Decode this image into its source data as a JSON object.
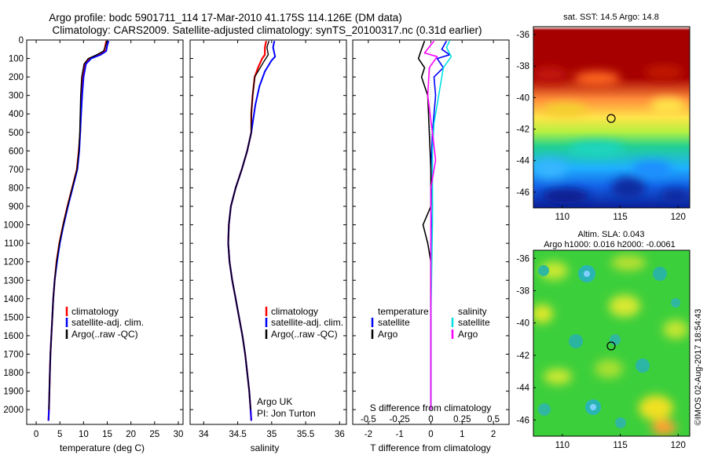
{
  "header": {
    "line1": "Argo profile: bodc 5901711_114 17-Mar-2010 41.175S 114.126E (DM data)",
    "line2": "Climatology: CARS2009. Satellite-adjusted climatology: synTS_20100317.nc (0.31d earlier)"
  },
  "colors": {
    "climatology": "#ff0000",
    "satellite": "#0000ff",
    "argo": "#000000",
    "sat_salinity": "#00e0e0",
    "argo_salinity": "#ff00ff"
  },
  "chart_data": [
    {
      "id": "temperature",
      "type": "line",
      "xlabel": "temperature (deg C)",
      "ylabel": "",
      "xlim": [
        -2,
        31
      ],
      "ylim": [
        2080,
        0
      ],
      "xticks": [
        0,
        5,
        10,
        15,
        20,
        25,
        30
      ],
      "yticks": [
        0,
        100,
        200,
        300,
        400,
        500,
        600,
        700,
        800,
        900,
        1000,
        1100,
        1200,
        1300,
        1400,
        1500,
        1600,
        1700,
        1800,
        1900,
        2000
      ],
      "legend": [
        "climatology",
        "satellite-adj. clim.",
        "Argo(..raw -QC)"
      ],
      "series": [
        {
          "name": "climatology",
          "points": [
            [
              14.8,
              5
            ],
            [
              14.6,
              30
            ],
            [
              14.4,
              60
            ],
            [
              13.2,
              80
            ],
            [
              11.3,
              100
            ],
            [
              10.3,
              130
            ],
            [
              9.9,
              200
            ],
            [
              9.6,
              300
            ],
            [
              9.4,
              400
            ],
            [
              9.3,
              500
            ],
            [
              9.0,
              600
            ],
            [
              8.6,
              700
            ],
            [
              7.6,
              800
            ],
            [
              6.6,
              900
            ],
            [
              5.7,
              1000
            ],
            [
              4.9,
              1100
            ],
            [
              4.3,
              1200
            ],
            [
              3.9,
              1300
            ],
            [
              3.6,
              1400
            ],
            [
              3.4,
              1500
            ],
            [
              3.2,
              1600
            ],
            [
              3.0,
              1700
            ],
            [
              2.9,
              1800
            ],
            [
              2.8,
              1900
            ],
            [
              2.7,
              2000
            ],
            [
              2.6,
              2060
            ]
          ]
        },
        {
          "name": "satellite-adj. clim.",
          "points": [
            [
              15.3,
              5
            ],
            [
              15.0,
              30
            ],
            [
              14.8,
              60
            ],
            [
              13.6,
              80
            ],
            [
              11.6,
              100
            ],
            [
              10.5,
              130
            ],
            [
              10.0,
              200
            ],
            [
              9.7,
              300
            ],
            [
              9.5,
              400
            ],
            [
              9.3,
              500
            ],
            [
              9.1,
              600
            ],
            [
              8.7,
              700
            ],
            [
              7.7,
              800
            ],
            [
              6.7,
              900
            ],
            [
              5.8,
              1000
            ],
            [
              5.0,
              1100
            ],
            [
              4.4,
              1200
            ],
            [
              3.9,
              1300
            ],
            [
              3.6,
              1400
            ],
            [
              3.4,
              1500
            ],
            [
              3.2,
              1600
            ],
            [
              3.0,
              1700
            ],
            [
              2.9,
              1800
            ],
            [
              2.8,
              1900
            ],
            [
              2.7,
              2000
            ],
            [
              2.6,
              2060
            ]
          ]
        },
        {
          "name": "Argo(..raw -QC)",
          "points": [
            [
              14.9,
              5
            ],
            [
              14.7,
              30
            ],
            [
              14.2,
              60
            ],
            [
              12.8,
              80
            ],
            [
              11.0,
              100
            ],
            [
              10.1,
              130
            ],
            [
              9.6,
              200
            ],
            [
              9.4,
              300
            ],
            [
              9.3,
              400
            ],
            [
              9.2,
              500
            ],
            [
              9.0,
              600
            ],
            [
              8.6,
              700
            ],
            [
              7.6,
              800
            ],
            [
              6.6,
              900
            ],
            [
              5.7,
              1000
            ],
            [
              4.9,
              1100
            ],
            [
              4.3,
              1200
            ],
            [
              3.9,
              1300
            ],
            [
              3.6,
              1400
            ],
            [
              3.4,
              1500
            ],
            [
              3.2,
              1600
            ],
            [
              3.0,
              1700
            ],
            [
              2.9,
              1800
            ],
            [
              2.8,
              1900
            ],
            [
              2.7,
              2000
            ]
          ]
        }
      ]
    },
    {
      "id": "salinity",
      "type": "line",
      "xlabel": "salinity",
      "xlim": [
        33.8,
        36.1
      ],
      "ylim": [
        2080,
        0
      ],
      "xticks": [
        34,
        34.5,
        35,
        35.5,
        36
      ],
      "legend": [
        "climatology",
        "satellite-adj. clim.",
        "Argo(..raw -QC)"
      ],
      "annotation": [
        "Argo UK",
        "PI: Jon Turton"
      ],
      "series": [
        {
          "name": "climatology",
          "points": [
            [
              34.92,
              5
            ],
            [
              34.9,
              40
            ],
            [
              34.9,
              80
            ],
            [
              34.86,
              100
            ],
            [
              34.8,
              150
            ],
            [
              34.75,
              200
            ],
            [
              34.72,
              300
            ],
            [
              34.7,
              400
            ],
            [
              34.7,
              500
            ],
            [
              34.64,
              600
            ],
            [
              34.56,
              700
            ],
            [
              34.47,
              800
            ],
            [
              34.4,
              900
            ],
            [
              34.37,
              1000
            ],
            [
              34.36,
              1100
            ],
            [
              34.38,
              1200
            ],
            [
              34.42,
              1300
            ],
            [
              34.47,
              1400
            ],
            [
              34.52,
              1500
            ],
            [
              34.57,
              1600
            ],
            [
              34.61,
              1700
            ],
            [
              34.64,
              1800
            ],
            [
              34.67,
              1900
            ],
            [
              34.69,
              2000
            ],
            [
              34.7,
              2060
            ]
          ]
        },
        {
          "name": "satellite-adj. clim.",
          "points": [
            [
              35.04,
              5
            ],
            [
              35.02,
              40
            ],
            [
              35.05,
              90
            ],
            [
              35.0,
              110
            ],
            [
              34.9,
              170
            ],
            [
              34.82,
              250
            ],
            [
              34.76,
              350
            ],
            [
              34.72,
              450
            ],
            [
              34.7,
              500
            ],
            [
              34.64,
              600
            ],
            [
              34.56,
              700
            ],
            [
              34.47,
              800
            ],
            [
              34.4,
              900
            ],
            [
              34.37,
              1000
            ],
            [
              34.36,
              1100
            ],
            [
              34.38,
              1200
            ],
            [
              34.42,
              1300
            ],
            [
              34.47,
              1400
            ],
            [
              34.52,
              1500
            ],
            [
              34.57,
              1600
            ],
            [
              34.61,
              1700
            ],
            [
              34.64,
              1800
            ],
            [
              34.67,
              1900
            ],
            [
              34.69,
              2000
            ],
            [
              34.7,
              2060
            ]
          ]
        },
        {
          "name": "Argo(..raw -QC)",
          "points": [
            [
              34.96,
              5
            ],
            [
              34.93,
              40
            ],
            [
              34.95,
              80
            ],
            [
              34.88,
              120
            ],
            [
              34.8,
              170
            ],
            [
              34.75,
              200
            ],
            [
              34.72,
              300
            ],
            [
              34.7,
              400
            ],
            [
              34.7,
              500
            ],
            [
              34.64,
              600
            ],
            [
              34.56,
              700
            ],
            [
              34.47,
              800
            ],
            [
              34.4,
              900
            ],
            [
              34.37,
              1000
            ],
            [
              34.36,
              1100
            ],
            [
              34.38,
              1200
            ],
            [
              34.42,
              1300
            ],
            [
              34.47,
              1400
            ],
            [
              34.52,
              1500
            ],
            [
              34.57,
              1600
            ],
            [
              34.61,
              1700
            ],
            [
              34.64,
              1800
            ],
            [
              34.67,
              1900
            ],
            [
              34.69,
              2000
            ]
          ]
        }
      ]
    },
    {
      "id": "difference",
      "type": "line",
      "xlabel": "T difference from climatology",
      "top_label": "S difference from climatology",
      "xlim": [
        -2.5,
        2.5
      ],
      "ylim": [
        2080,
        0
      ],
      "xticks": [
        -2,
        -1,
        0,
        1,
        2
      ],
      "xticks_top": [
        "-0.5",
        "-0.25",
        "0",
        "0.25",
        "0.5"
      ],
      "legend_groups": [
        {
          "title": "temperature",
          "entries": [
            "satellite",
            "Argo"
          ]
        },
        {
          "title": "salinity",
          "entries": [
            "satellite",
            "Argo"
          ]
        }
      ],
      "series": [
        {
          "name": "satellite",
          "group": "temperature",
          "points": [
            [
              0.5,
              5
            ],
            [
              0.35,
              50
            ],
            [
              0.6,
              80
            ],
            [
              0.2,
              100
            ],
            [
              0.4,
              150
            ],
            [
              0.1,
              200
            ],
            [
              0.15,
              300
            ],
            [
              0.05,
              500
            ],
            [
              0.0,
              700
            ],
            [
              0.05,
              900
            ],
            [
              0.0,
              1100
            ],
            [
              0.0,
              1500
            ],
            [
              0.0,
              2000
            ]
          ]
        },
        {
          "name": "Argo",
          "group": "temperature",
          "points": [
            [
              -0.2,
              5
            ],
            [
              -0.3,
              50
            ],
            [
              -0.4,
              100
            ],
            [
              -0.2,
              150
            ],
            [
              -0.3,
              200
            ],
            [
              -0.1,
              300
            ],
            [
              -0.05,
              500
            ],
            [
              0.0,
              700
            ],
            [
              0.0,
              900
            ],
            [
              -0.25,
              1000
            ],
            [
              -0.1,
              1100
            ],
            [
              0.0,
              1200
            ],
            [
              0.0,
              1500
            ],
            [
              0.0,
              2000
            ]
          ]
        },
        {
          "name": "satellite",
          "group": "salinity",
          "points": [
            [
              0.6,
              5
            ],
            [
              0.5,
              40
            ],
            [
              0.65,
              90
            ],
            [
              0.4,
              150
            ],
            [
              0.3,
              250
            ],
            [
              0.2,
              350
            ],
            [
              0.1,
              450
            ],
            [
              0.05,
              600
            ],
            [
              0.05,
              1000
            ],
            [
              0.0,
              1500
            ],
            [
              0.0,
              2000
            ]
          ]
        },
        {
          "name": "Argo",
          "group": "salinity",
          "points": [
            [
              0.1,
              5
            ],
            [
              -0.2,
              70
            ],
            [
              0.2,
              90
            ],
            [
              -0.05,
              150
            ],
            [
              -0.1,
              300
            ],
            [
              0.05,
              500
            ],
            [
              0.15,
              650
            ],
            [
              0.0,
              800
            ],
            [
              0.0,
              2000
            ]
          ]
        }
      ]
    },
    {
      "id": "sst_map",
      "type": "heatmap",
      "title": "sat. SST: 14.5 Argo: 14.8",
      "xlim": [
        107.5,
        121
      ],
      "ylim": [
        -47,
        -35.5
      ],
      "xticks": [
        110,
        115,
        120
      ],
      "yticks": [
        -36,
        -38,
        -40,
        -42,
        -44,
        -46
      ],
      "marker": [
        114.126,
        -41.175
      ]
    },
    {
      "id": "sla_map",
      "type": "heatmap",
      "title": "Altim. SLA: 0.043",
      "subtitle": "Argo h1000: 0.016 h2000: -0.0061",
      "xlim": [
        107.5,
        121
      ],
      "ylim": [
        -47,
        -35.5
      ],
      "xticks": [
        110,
        115,
        120
      ],
      "yticks": [
        -36,
        -38,
        -40,
        -42,
        -44,
        -46
      ],
      "marker": [
        114.126,
        -41.175
      ]
    }
  ],
  "footer": {
    "credit": "©IMOS 02-Aug-2017 18:54:43"
  }
}
